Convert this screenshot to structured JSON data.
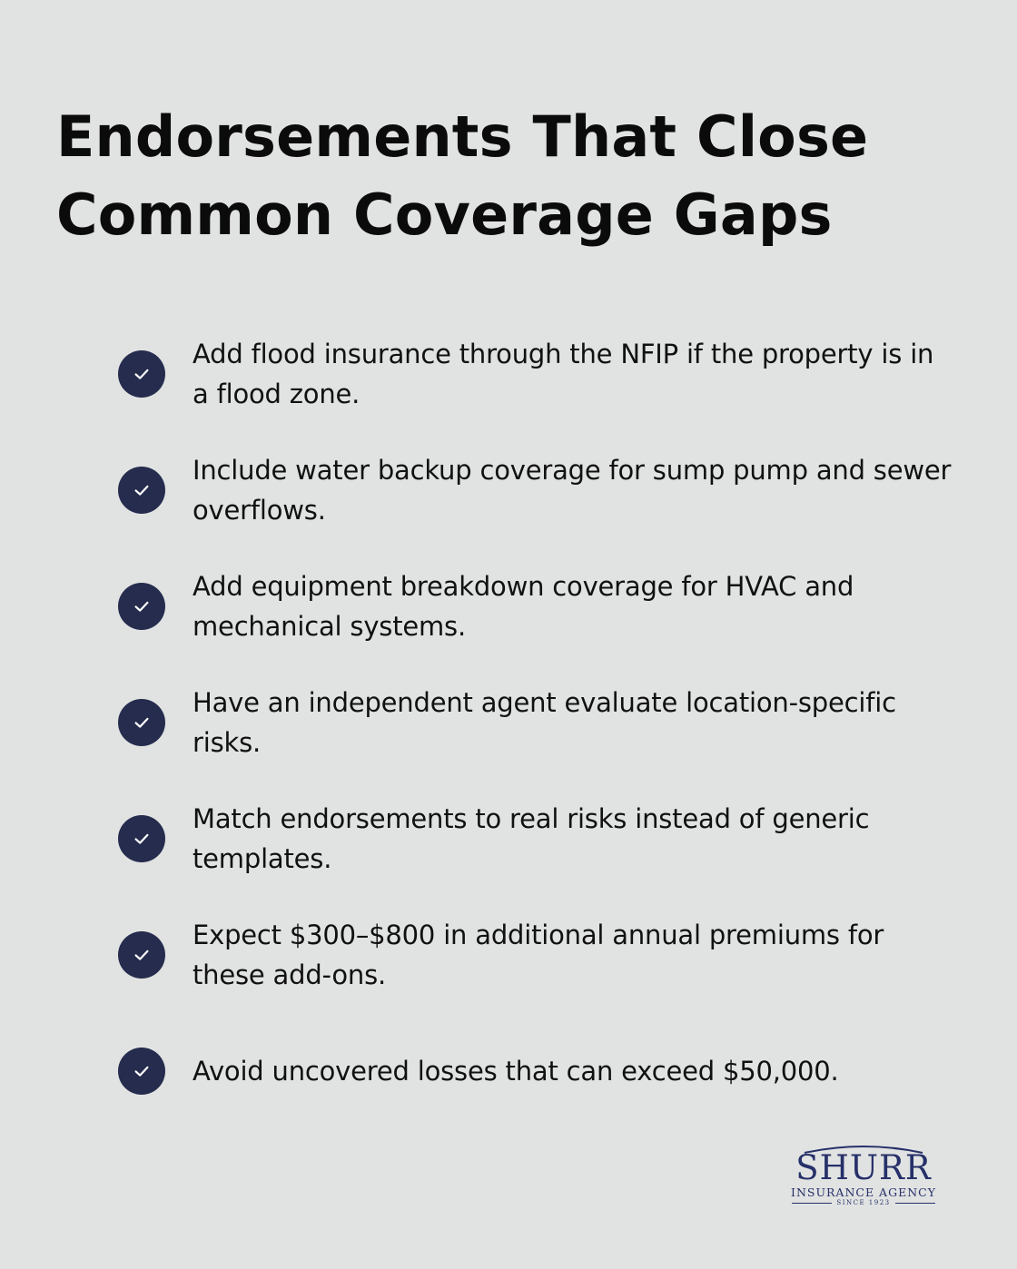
{
  "title": "Endorsements That Close Common Coverage Gaps",
  "items": [
    {
      "text": "Add flood insurance through the NFIP if the property is in a flood zone.",
      "icon": "check-icon"
    },
    {
      "text": "Include water backup coverage for sump pump and sewer overflows.",
      "icon": "check-icon"
    },
    {
      "text": "Add equipment breakdown coverage for HVAC and mechanical systems.",
      "icon": "check-icon"
    },
    {
      "text": "Have an independent agent evaluate location-specific risks.",
      "icon": "check-icon"
    },
    {
      "text": "Match endorsements to real risks instead of generic templates.",
      "icon": "check-icon"
    },
    {
      "text": "Expect $300–$800 in additional annual premiums for these add-ons.",
      "icon": "check-icon"
    },
    {
      "text": "Avoid uncovered losses that can exceed $50,000.",
      "icon": "check-icon"
    }
  ],
  "logo": {
    "name": "SHURR",
    "subtitle": "INSURANCE AGENCY",
    "since": "SINCE 1923"
  },
  "colors": {
    "background": "#e1e3e2",
    "check_circle": "#252c4e",
    "text": "#111111",
    "logo": "#263069"
  }
}
